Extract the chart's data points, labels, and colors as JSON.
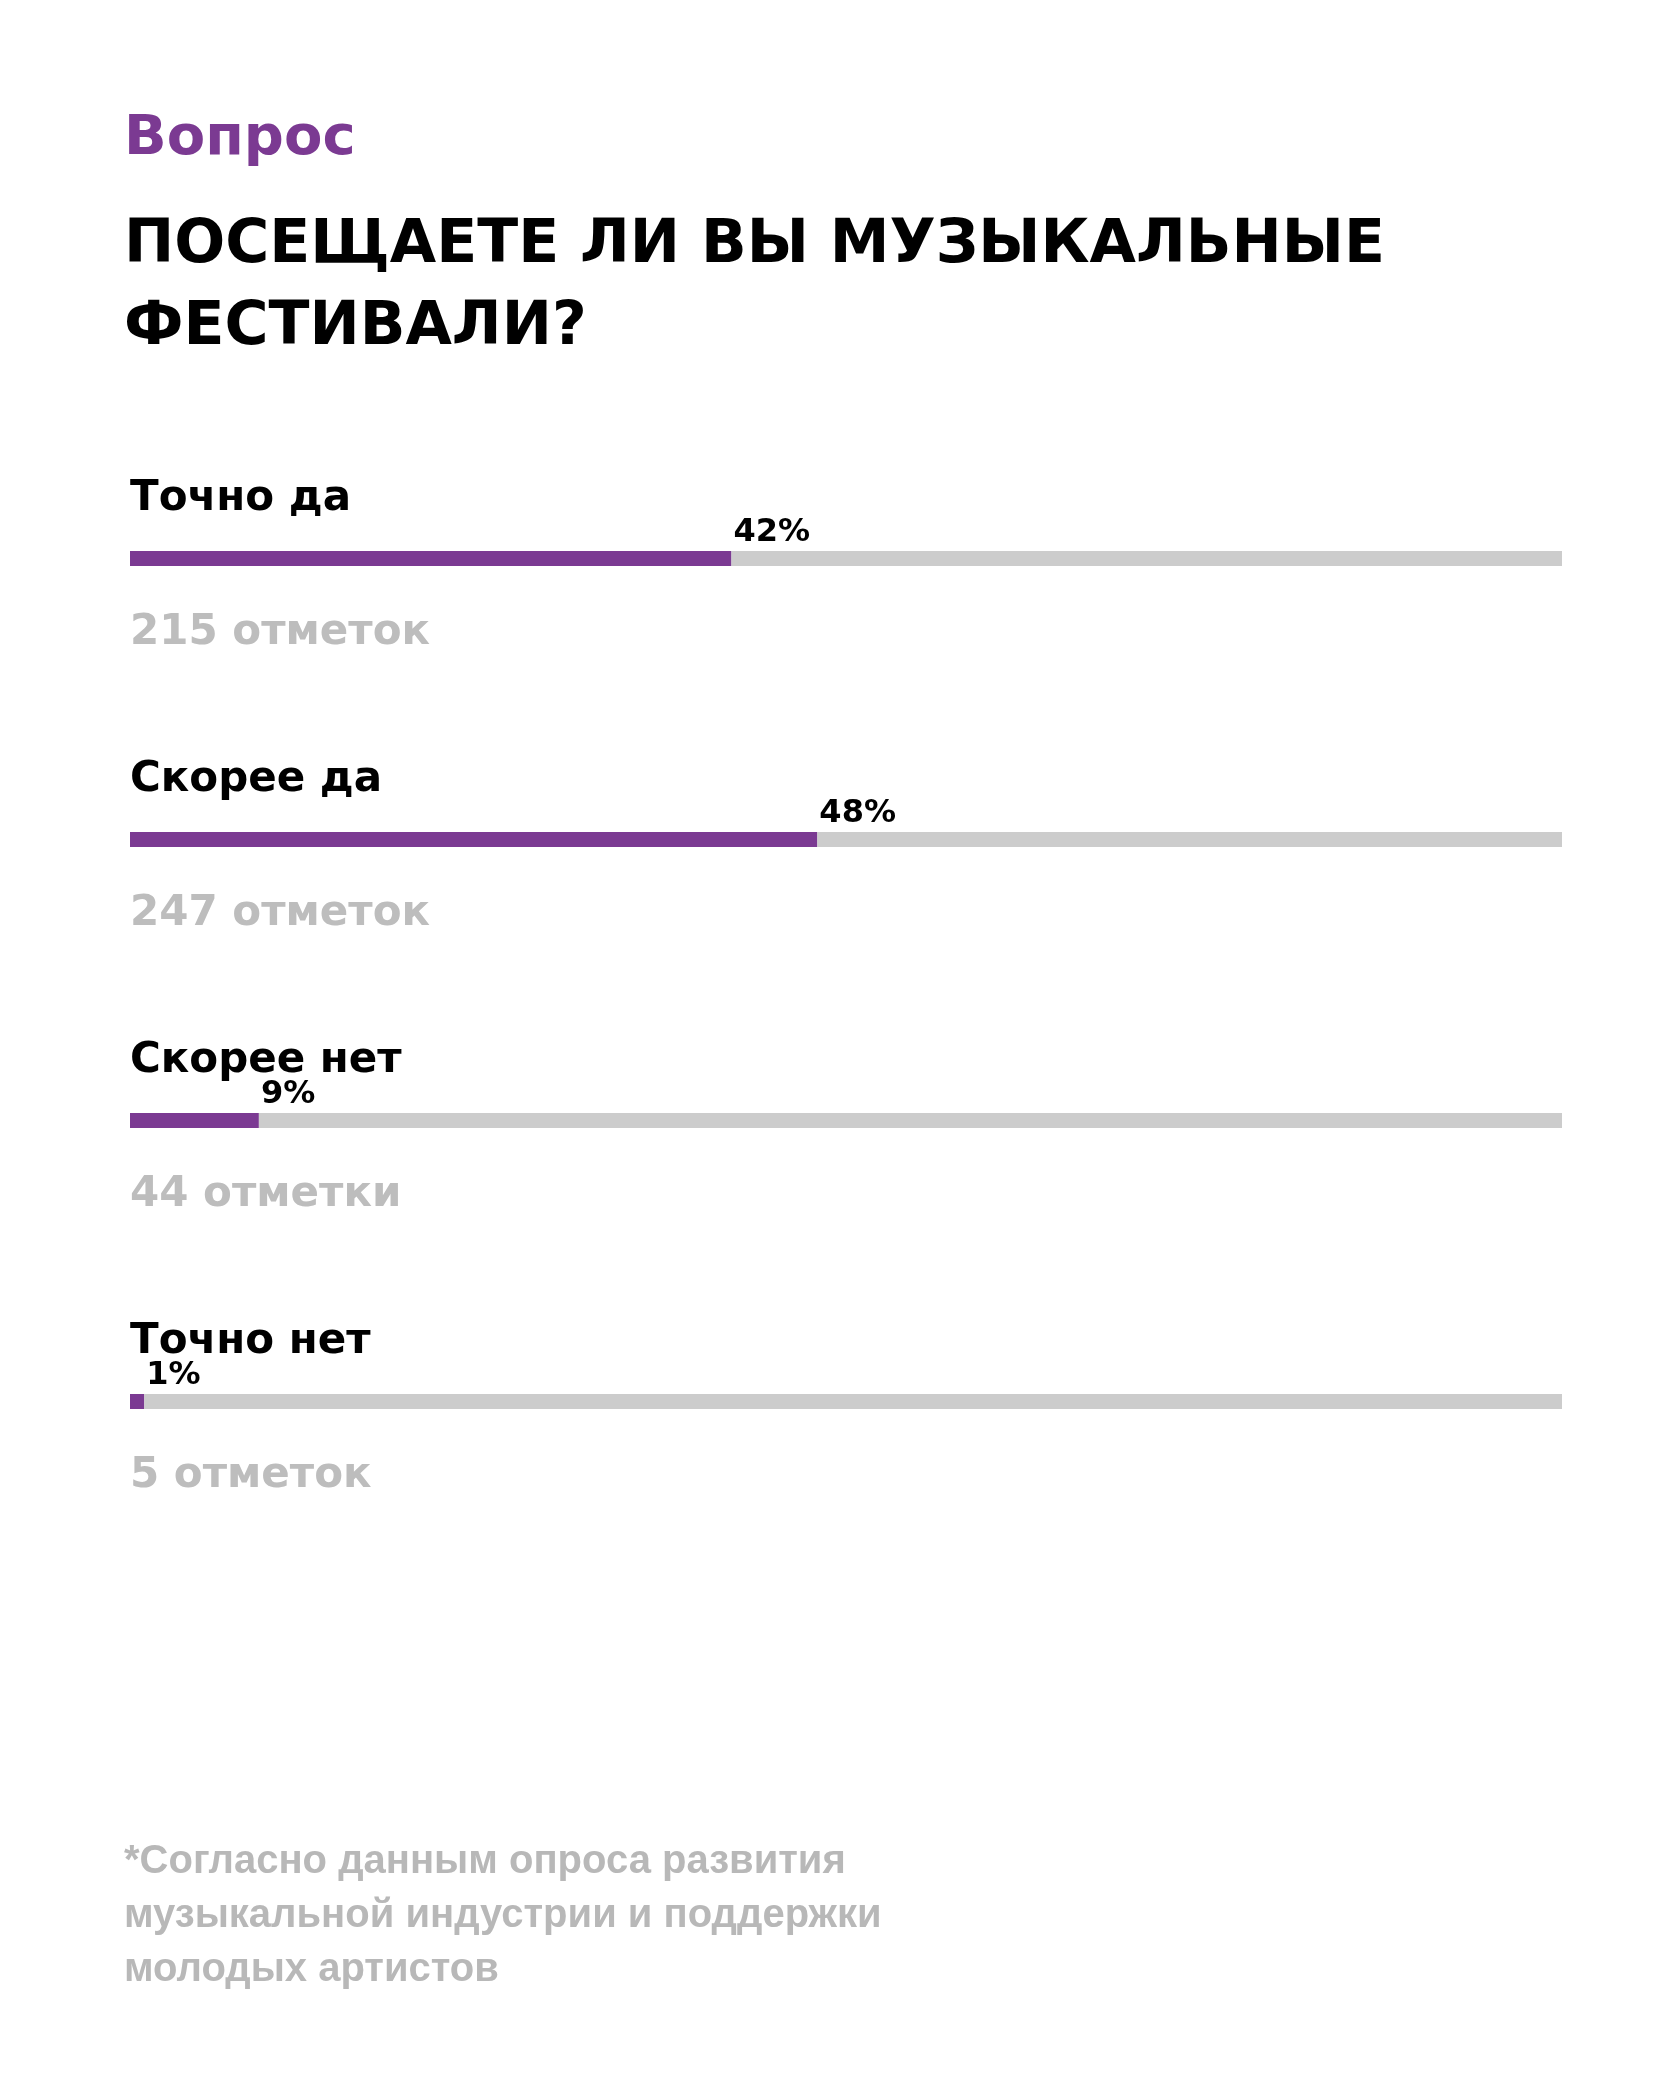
{
  "chart_data": {
    "type": "bar",
    "orientation": "horizontal",
    "stacked": true,
    "subtitle": "Вопрос",
    "title": "ПОСЕЩАЕТЕ ЛИ ВЫ МУЗЫКАЛЬНЫЕ ФЕСТИВАЛИ?",
    "categories": [
      "Точно да",
      "Скорее да",
      "Скорее нет",
      "Точно нет"
    ],
    "series": [
      {
        "color": "#7b3a92",
        "values": [
          42,
          48,
          9,
          1
        ],
        "value_labels": [
          "42%",
          "48%",
          "9%",
          "1%"
        ]
      },
      {
        "color": "#cccccc",
        "values": [
          58,
          52,
          91,
          99
        ]
      }
    ],
    "xlim": [
      0,
      100
    ],
    "tick_labels": false,
    "grid": false,
    "legend": false,
    "annotations": [
      "215 отметок",
      "247 отметок",
      "44 отметки",
      "5 отметок",
      "*Согласно данным опроса развития музыкальной индустрии и поддержки молодых артистов"
    ]
  }
}
